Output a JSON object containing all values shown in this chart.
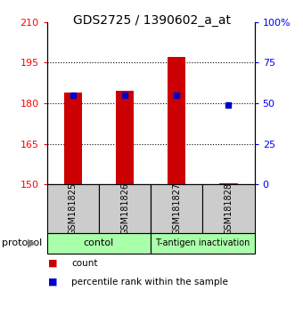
{
  "title": "GDS2725 / 1390602_a_at",
  "samples": [
    "GSM181825",
    "GSM181826",
    "GSM181827",
    "GSM181828"
  ],
  "red_values": [
    184.0,
    184.5,
    197.0,
    150.5
  ],
  "blue_values_pct": [
    55.0,
    55.0,
    55.0,
    49.0
  ],
  "ylim_left": [
    150,
    210
  ],
  "ylim_right": [
    0,
    100
  ],
  "left_ticks": [
    150,
    165,
    180,
    195,
    210
  ],
  "right_ticks": [
    0,
    25,
    50,
    75,
    100
  ],
  "right_tick_labels": [
    "0",
    "25",
    "50",
    "75",
    "100%"
  ],
  "grid_lines": [
    165,
    180,
    195
  ],
  "groups": [
    {
      "label": "contol",
      "color": "#aaffaa"
    },
    {
      "label": "T-antigen inactivation",
      "color": "#aaffaa"
    }
  ],
  "bar_color": "#cc0000",
  "dot_color": "#0000cc",
  "bar_width": 0.35,
  "sample_box_color": "#cccccc",
  "protocol_label": "protocol",
  "legend_count_label": "count",
  "legend_pct_label": "percentile rank within the sample",
  "title_fontsize": 10,
  "tick_fontsize": 8,
  "label_fontsize": 8,
  "sample_fontsize": 7,
  "group_fontsize": 8
}
